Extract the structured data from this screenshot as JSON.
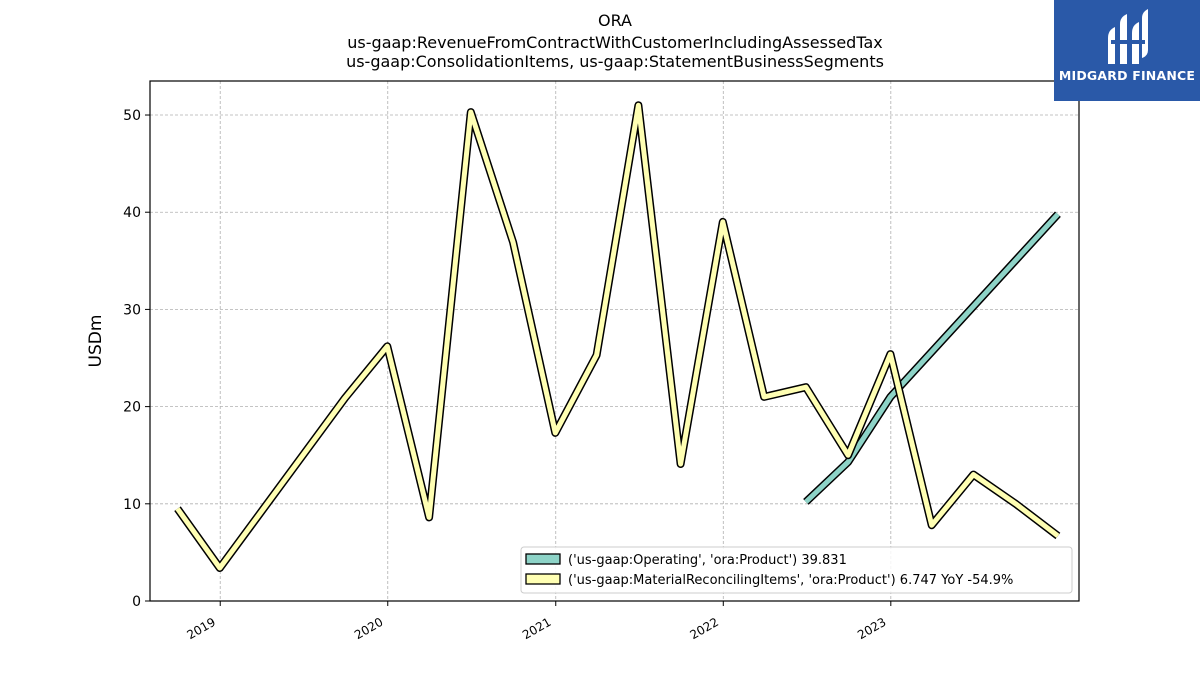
{
  "brand": {
    "name": "MIDGARD FINANCE",
    "logo_icon": "midgard-logo-icon",
    "color": "#2a59a8"
  },
  "chart_data": {
    "type": "line",
    "title": [
      "ORA",
      "us-gaap:RevenueFromContractWithCustomerIncludingAssessedTax",
      "us-gaap:ConsolidationItems, us-gaap:StatementBusinessSegments"
    ],
    "xlabel": "",
    "ylabel": "USDm",
    "xlim": [
      "2018-08-01",
      "2024-02-15"
    ],
    "ylim": [
      0,
      53.5
    ],
    "x_ticks": [
      "2019",
      "2020",
      "2021",
      "2022",
      "2023"
    ],
    "y_ticks": [
      0,
      10,
      20,
      30,
      40,
      50
    ],
    "grid": true,
    "legend_position": "lower-right",
    "series": [
      {
        "name": "('us-gaap:Operating', 'ora:Product') 39.831",
        "color": "#8dd3c7",
        "x": [
          "2022-06-30",
          "2022-09-30",
          "2022-12-31",
          "2023-12-31"
        ],
        "values": [
          10.2,
          14.3,
          21.0,
          39.8
        ]
      },
      {
        "name": "('us-gaap:MaterialReconcilingItems', 'ora:Product') 6.747 YoY -54.9%",
        "color": "#ffffb3",
        "x": [
          "2018-09-30",
          "2018-12-31",
          "2019-09-30",
          "2019-12-31",
          "2020-03-31",
          "2020-06-30",
          "2020-09-30",
          "2020-12-31",
          "2021-03-31",
          "2021-06-30",
          "2021-09-30",
          "2021-12-31",
          "2022-03-31",
          "2022-06-30",
          "2022-09-30",
          "2022-12-31",
          "2023-03-31",
          "2023-06-30",
          "2023-09-30",
          "2023-12-31"
        ],
        "values": [
          9.5,
          3.4,
          20.9,
          26.2,
          8.6,
          50.3,
          36.9,
          17.3,
          25.3,
          51.0,
          14.1,
          39.0,
          21.0,
          22.0,
          15.0,
          25.4,
          7.8,
          13.0,
          10.0,
          6.7
        ]
      }
    ]
  }
}
